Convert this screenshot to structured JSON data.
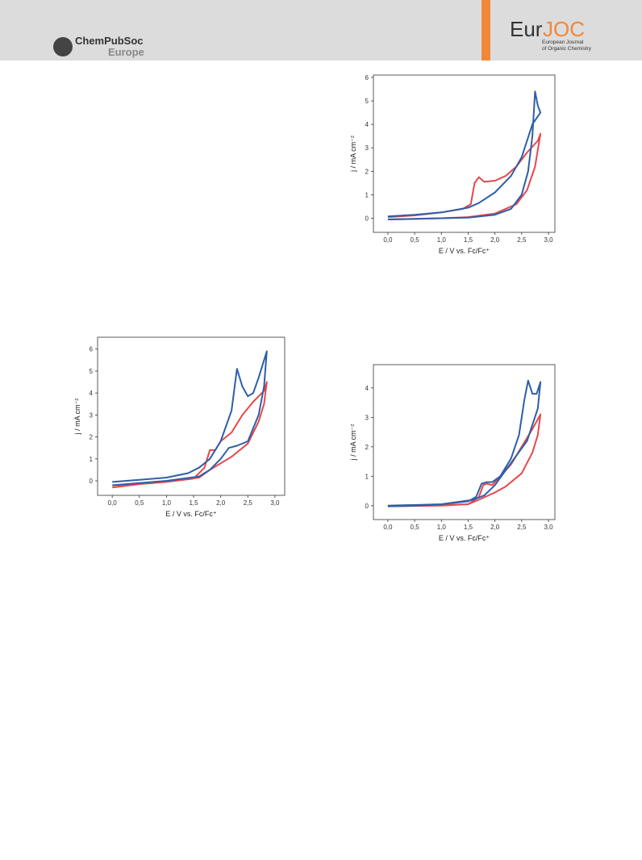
{
  "header": {
    "publisher": "ChemPubSoc",
    "publisher_region": "Europe",
    "journal_a": "Eur",
    "journal_b": "JOC",
    "journal_line1": "European Journal",
    "journal_line2": "of Organic Chemistry"
  },
  "chart_data": [
    {
      "type": "line",
      "x_label": "E / V vs. Fc/Fc⁺",
      "y_label": "j / mA cm⁻²",
      "xlim": [
        -0.27,
        3.12
      ],
      "ylim": [
        -0.6,
        6.1
      ],
      "xticks": [
        {
          "value": 0,
          "label": "0,0"
        },
        {
          "value": 0.5,
          "label": "0,5"
        },
        {
          "value": 1,
          "label": "1,0"
        },
        {
          "value": 1.5,
          "label": "1,5"
        },
        {
          "value": 2,
          "label": "2,0"
        },
        {
          "value": 2.5,
          "label": "2,5"
        },
        {
          "value": 3,
          "label": "3,0"
        }
      ],
      "yticks": [
        0,
        1,
        2,
        3,
        4,
        5,
        6
      ],
      "series": [
        {
          "color": "#e8474a",
          "x": [
            0,
            1.0,
            1.5,
            2.0,
            2.4,
            2.6,
            2.75,
            2.85,
            2.8,
            2.6,
            2.4,
            2.2,
            2.0,
            1.8,
            1.7,
            1.62,
            1.55,
            1.4,
            1.0,
            0.5,
            0
          ],
          "values": [
            -0.05,
            0.0,
            0.05,
            0.2,
            0.6,
            1.2,
            2.2,
            3.6,
            3.3,
            2.8,
            2.2,
            1.8,
            1.6,
            1.55,
            1.75,
            1.5,
            0.6,
            0.4,
            0.25,
            0.12,
            0.05
          ]
        },
        {
          "color": "#2e5ea8",
          "x": [
            0,
            0.5,
            1.0,
            1.5,
            2.0,
            2.3,
            2.5,
            2.62,
            2.7,
            2.75,
            2.8,
            2.85,
            2.7,
            2.5,
            2.3,
            2.0,
            1.7,
            1.5,
            1.0,
            0.5,
            0
          ],
          "values": [
            -0.05,
            -0.03,
            0.0,
            0.03,
            0.15,
            0.4,
            1.0,
            2.0,
            3.5,
            5.4,
            4.8,
            4.5,
            4.0,
            2.6,
            1.8,
            1.1,
            0.65,
            0.45,
            0.25,
            0.15,
            0.08
          ]
        }
      ]
    },
    {
      "type": "line",
      "x_label": "E / V vs. Fc/Fc⁺",
      "y_label": "j / mA cm⁻²",
      "xlim": [
        -0.27,
        3.18
      ],
      "ylim": [
        -0.66,
        6.54
      ],
      "xticks": [
        {
          "value": 0,
          "label": "0,0"
        },
        {
          "value": 0.5,
          "label": "0,5"
        },
        {
          "value": 1,
          "label": "1,0"
        },
        {
          "value": 1.5,
          "label": "1,5"
        },
        {
          "value": 2,
          "label": "2,0"
        },
        {
          "value": 2.5,
          "label": "2,5"
        },
        {
          "value": 3,
          "label": "3,0"
        }
      ],
      "yticks": [
        0,
        1,
        2,
        3,
        4,
        5,
        6
      ],
      "series": [
        {
          "color": "#e8474a",
          "x": [
            0,
            0.5,
            1.0,
            1.5,
            1.7,
            1.8,
            1.9,
            2.0,
            2.2,
            2.4,
            2.6,
            2.8,
            2.85,
            2.8,
            2.7,
            2.5,
            2.2,
            2.0,
            1.8,
            1.6,
            1.0,
            0.5,
            0
          ],
          "values": [
            -0.3,
            -0.15,
            -0.05,
            0.1,
            0.6,
            1.4,
            1.4,
            1.8,
            2.2,
            3.0,
            3.6,
            4.1,
            4.5,
            3.5,
            2.7,
            1.7,
            1.1,
            0.8,
            0.5,
            0.15,
            -0.05,
            -0.15,
            -0.2
          ]
        },
        {
          "color": "#2e5ea8",
          "x": [
            0,
            0.5,
            1.0,
            1.4,
            1.6,
            1.8,
            2.0,
            2.2,
            2.3,
            2.4,
            2.5,
            2.6,
            2.7,
            2.85,
            2.8,
            2.7,
            2.5,
            2.3,
            2.15,
            2.0,
            1.8,
            1.6,
            1.0,
            0.5,
            0
          ],
          "values": [
            -0.05,
            0.05,
            0.15,
            0.35,
            0.6,
            1.0,
            1.8,
            3.2,
            5.1,
            4.3,
            3.85,
            4.0,
            4.7,
            5.9,
            4.3,
            3.0,
            1.8,
            1.6,
            1.5,
            1.0,
            0.5,
            0.2,
            0.0,
            -0.1,
            -0.2
          ]
        }
      ]
    },
    {
      "type": "line",
      "x_label": "E / V vs. Fc/Fc⁺",
      "y_label": "j / mA cm⁻²",
      "xlim": [
        -0.27,
        3.12
      ],
      "ylim": [
        -0.47,
        4.79
      ],
      "xticks": [
        {
          "value": 0,
          "label": "0,0"
        },
        {
          "value": 0.5,
          "label": "0,5"
        },
        {
          "value": 1,
          "label": "1,0"
        },
        {
          "value": 1.5,
          "label": "1,5"
        },
        {
          "value": 2,
          "label": "2,0"
        },
        {
          "value": 2.5,
          "label": "2,5"
        },
        {
          "value": 3,
          "label": "3,0"
        }
      ],
      "yticks": [
        0,
        1,
        2,
        3,
        4
      ],
      "series": [
        {
          "color": "#e8474a",
          "x": [
            0,
            1.0,
            1.5,
            1.7,
            1.78,
            1.85,
            1.95,
            2.1,
            2.3,
            2.5,
            2.7,
            2.85,
            2.8,
            2.7,
            2.5,
            2.2,
            2.0,
            1.7,
            1.5,
            1.0,
            0
          ],
          "values": [
            -0.02,
            0.02,
            0.05,
            0.3,
            0.7,
            0.75,
            0.7,
            1.0,
            1.4,
            2.0,
            2.6,
            3.1,
            2.4,
            1.8,
            1.1,
            0.65,
            0.45,
            0.2,
            0.05,
            0.0,
            -0.02
          ]
        },
        {
          "color": "#2e5ea8",
          "x": [
            0,
            0.5,
            1.0,
            1.5,
            1.65,
            1.75,
            1.85,
            1.95,
            2.1,
            2.3,
            2.45,
            2.55,
            2.62,
            2.7,
            2.78,
            2.85,
            2.8,
            2.6,
            2.4,
            2.2,
            2.0,
            1.8,
            1.6,
            1.0,
            0
          ],
          "values": [
            -0.02,
            0.0,
            0.05,
            0.15,
            0.3,
            0.75,
            0.8,
            0.8,
            1.0,
            1.6,
            2.4,
            3.6,
            4.25,
            3.8,
            3.8,
            4.2,
            3.3,
            2.2,
            1.7,
            1.2,
            0.7,
            0.35,
            0.2,
            0.05,
            0.0
          ]
        }
      ]
    }
  ]
}
